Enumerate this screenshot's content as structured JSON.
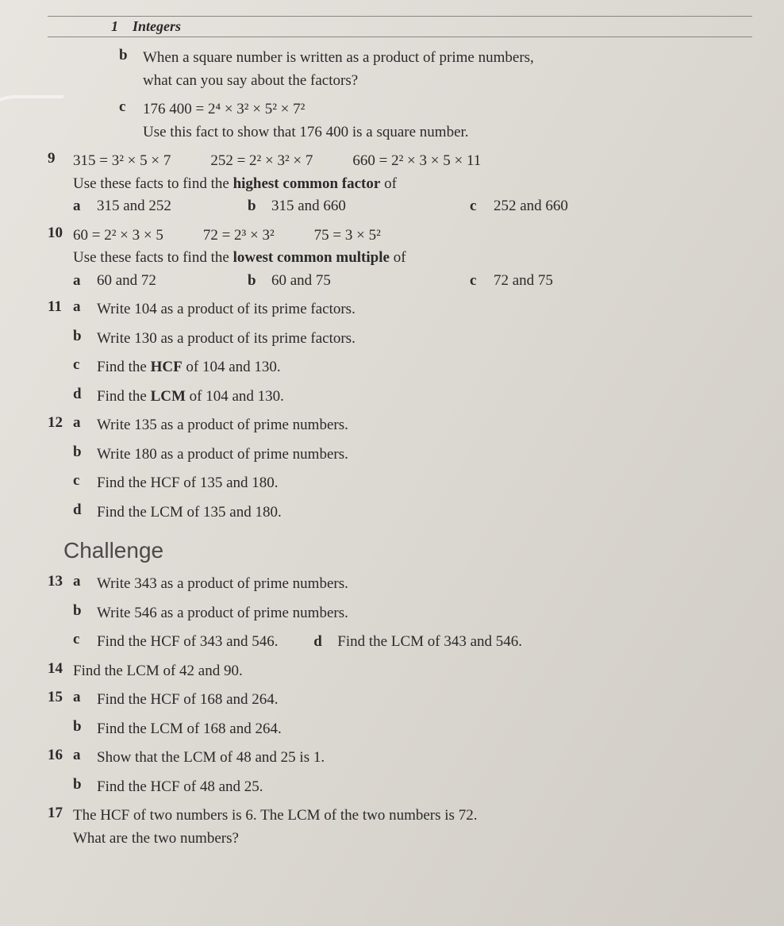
{
  "header": {
    "chapter": "1",
    "title": "Integers"
  },
  "questions": {
    "q_b_square": {
      "label": "b",
      "text1": "When a square number is written as a product of prime numbers,",
      "text2": "what can you say about the factors?"
    },
    "q_c_176400": {
      "label": "c",
      "fact": "176 400 = 2⁴ × 3² × 5² × 7²",
      "instruction": "Use this fact to show that 176 400 is a square number."
    },
    "q9": {
      "num": "9",
      "fact1": "315 = 3² × 5 × 7",
      "fact2": "252 = 2² × 3² × 7",
      "fact3": "660 = 2² × 3 × 5 × 11",
      "instruction": "Use these facts to find the highest common factor of",
      "opt_a_label": "a",
      "opt_a": "315 and 252",
      "opt_b_label": "b",
      "opt_b": "315 and 660",
      "opt_c_label": "c",
      "opt_c": "252 and 660"
    },
    "q10": {
      "num": "10",
      "fact1": "60 = 2² × 3 × 5",
      "fact2": "72 = 2³ × 3²",
      "fact3": "75 = 3 × 5²",
      "instruction": "Use these facts to find the lowest common multiple of",
      "opt_a_label": "a",
      "opt_a": "60 and 72",
      "opt_b_label": "b",
      "opt_b": "60 and 75",
      "opt_c_label": "c",
      "opt_c": "72 and 75"
    },
    "q11": {
      "num": "11",
      "a_label": "a",
      "a": "Write 104 as a product of its prime factors.",
      "b_label": "b",
      "b": "Write 130 as a product of its prime factors.",
      "c_label": "c",
      "c": "Find the HCF of 104 and 130.",
      "d_label": "d",
      "d": "Find the LCM of 104 and 130."
    },
    "q12": {
      "num": "12",
      "a_label": "a",
      "a": "Write 135 as a product of prime numbers.",
      "b_label": "b",
      "b": "Write 180 as a product of prime numbers.",
      "c_label": "c",
      "c": "Find the HCF of 135 and 180.",
      "d_label": "d",
      "d": "Find the LCM of 135 and 180."
    },
    "challenge": "Challenge",
    "q13": {
      "num": "13",
      "a_label": "a",
      "a": "Write 343 as a product of prime numbers.",
      "b_label": "b",
      "b": "Write 546 as a product of prime numbers.",
      "c_label": "c",
      "c": "Find the HCF of 343 and 546.",
      "d_label": "d",
      "d": "Find the LCM of 343 and 546."
    },
    "q14": {
      "num": "14",
      "text": "Find the LCM of 42 and 90."
    },
    "q15": {
      "num": "15",
      "a_label": "a",
      "a": "Find the HCF of 168 and 264.",
      "b_label": "b",
      "b": "Find the LCM of 168 and 264."
    },
    "q16": {
      "num": "16",
      "a_label": "a",
      "a": "Show that the LCM of 48 and 25 is 1.",
      "b_label": "b",
      "b": "Find the HCF of 48 and 25."
    },
    "q17": {
      "num": "17",
      "text1": "The HCF of two numbers is 6. The LCM of the two numbers is 72.",
      "text2": "What are the two numbers?"
    }
  },
  "styling": {
    "background_color": "#e0ddd6",
    "text_color": "#2a2a2a",
    "body_fontsize": 19,
    "heading_fontsize": 28,
    "heading_color": "#4a4a4a",
    "font_family": "Times New Roman"
  }
}
